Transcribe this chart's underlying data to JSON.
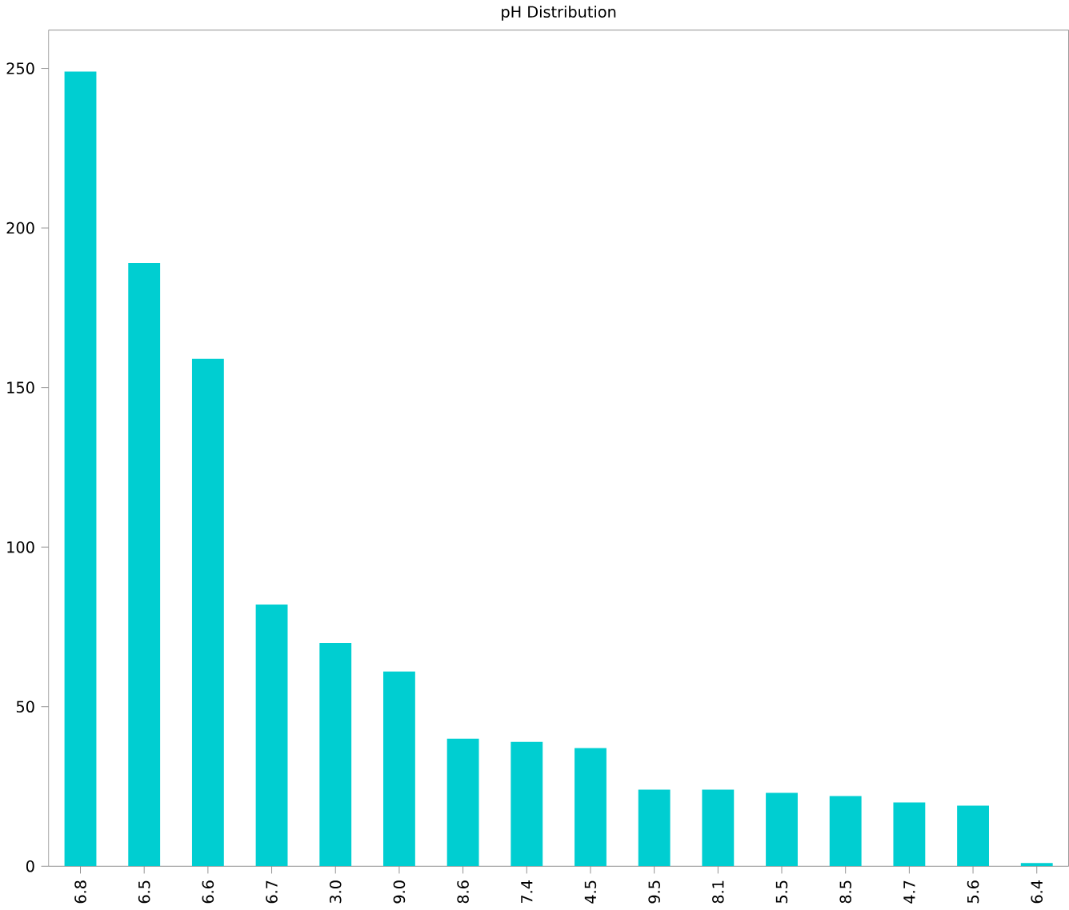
{
  "chart_data": {
    "type": "bar",
    "title": "pH Distribution",
    "categories": [
      "6.8",
      "6.5",
      "6.6",
      "6.7",
      "3.0",
      "9.0",
      "8.6",
      "7.4",
      "4.5",
      "9.5",
      "8.1",
      "5.5",
      "8.5",
      "4.7",
      "5.6",
      "6.4"
    ],
    "values": [
      249,
      189,
      159,
      82,
      70,
      61,
      40,
      39,
      37,
      24,
      24,
      23,
      22,
      20,
      19,
      1
    ],
    "color": "#00ced1",
    "ylim": [
      0,
      262
    ],
    "yticks": [
      0,
      50,
      100,
      150,
      200,
      250
    ]
  }
}
